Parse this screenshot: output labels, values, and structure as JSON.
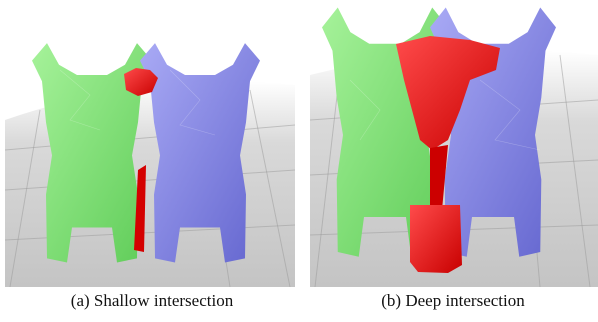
{
  "figures": [
    {
      "caption": "(a) Shallow intersection"
    },
    {
      "caption": "(b) Deep intersection"
    }
  ]
}
